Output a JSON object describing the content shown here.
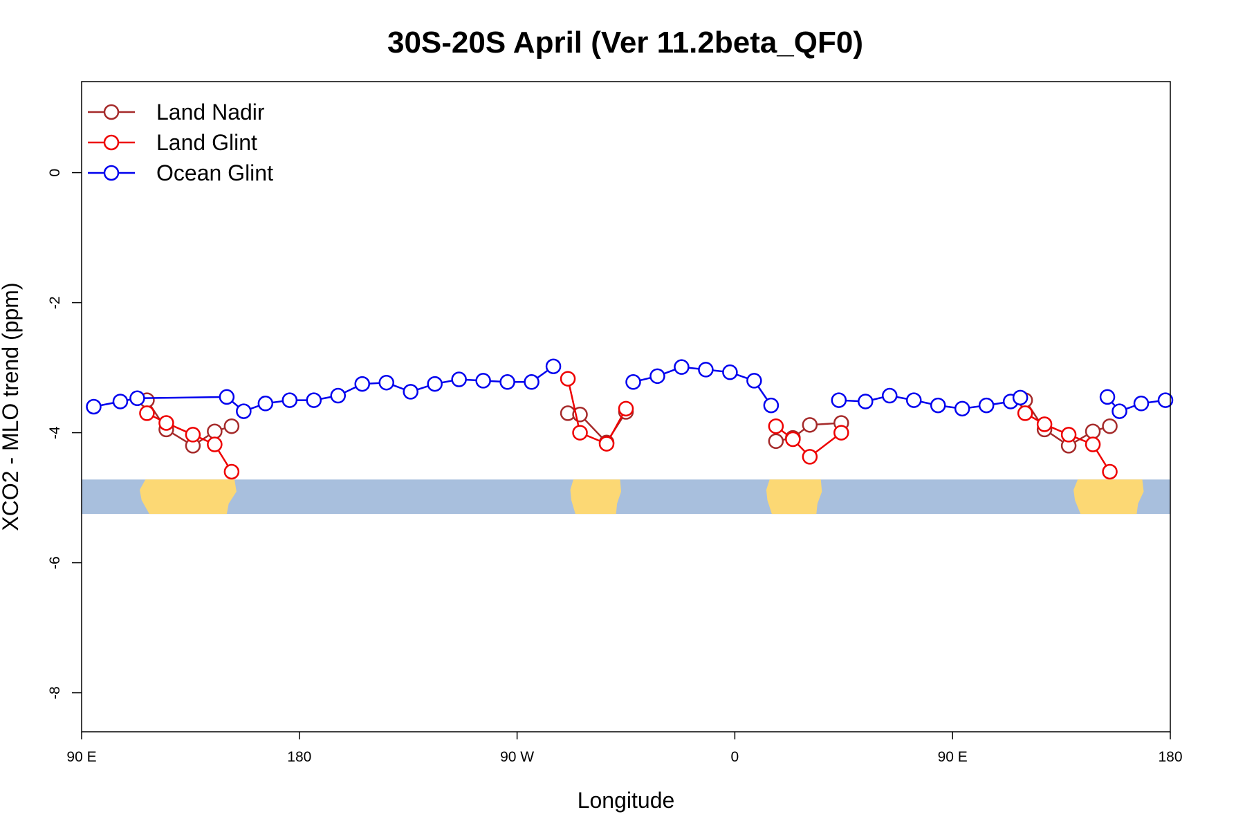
{
  "chart_data": {
    "type": "line",
    "title": "30S-20S April (Ver 11.2beta_QF0)",
    "xlabel": "Longitude",
    "ylabel": "XCO2 - MLO trend (ppm)",
    "xlim": [
      90,
      540
    ],
    "ylim": [
      -8.6,
      1.4
    ],
    "x_ticks": [
      {
        "value": 90,
        "label": "90 E"
      },
      {
        "value": 180,
        "label": "180"
      },
      {
        "value": 270,
        "label": "90 W"
      },
      {
        "value": 360,
        "label": "0"
      },
      {
        "value": 450,
        "label": "90 E"
      },
      {
        "value": 540,
        "label": "180"
      }
    ],
    "y_ticks": [
      {
        "value": 0,
        "label": "0"
      },
      {
        "value": -2,
        "label": "-2"
      },
      {
        "value": -4,
        "label": "-4"
      },
      {
        "value": -6,
        "label": "-6"
      },
      {
        "value": -8,
        "label": "-8"
      }
    ],
    "legend": {
      "position": "top-left"
    },
    "map_strip": {
      "y_range": [
        -5.25,
        -4.72
      ],
      "ocean_color": "#a8bfdd",
      "land_color": "#fcd874",
      "land_spans": [
        [
          114,
          154
        ],
        [
          292,
          313
        ],
        [
          373,
          396
        ],
        [
          500,
          529
        ]
      ]
    },
    "series": [
      {
        "name": "Land Nadir",
        "color": "#a52a2a",
        "segments": [
          [
            [
              117,
              -3.5
            ],
            [
              125,
              -3.95
            ],
            [
              136,
              -4.2
            ],
            [
              145,
              -3.98
            ],
            [
              152,
              -3.9
            ]
          ],
          [
            [
              291,
              -3.7
            ],
            [
              296,
              -3.72
            ],
            [
              307,
              -4.15
            ],
            [
              315,
              -3.68
            ]
          ],
          [
            [
              377,
              -4.13
            ],
            [
              384,
              -4.08
            ],
            [
              391,
              -3.88
            ],
            [
              404,
              -3.85
            ]
          ],
          [
            [
              480,
              -3.5
            ],
            [
              488,
              -3.95
            ],
            [
              498,
              -4.2
            ],
            [
              508,
              -3.98
            ],
            [
              515,
              -3.9
            ]
          ]
        ]
      },
      {
        "name": "Land Glint",
        "color": "#ee0000",
        "segments": [
          [
            [
              117,
              -3.7
            ],
            [
              125,
              -3.85
            ],
            [
              136,
              -4.03
            ],
            [
              145,
              -4.18
            ],
            [
              152,
              -4.6
            ]
          ],
          [
            [
              291,
              -3.17
            ],
            [
              296,
              -4.0
            ],
            [
              307,
              -4.17
            ],
            [
              315,
              -3.63
            ]
          ],
          [
            [
              377,
              -3.9
            ],
            [
              384,
              -4.1
            ],
            [
              391,
              -4.37
            ],
            [
              404,
              -4.0
            ]
          ],
          [
            [
              480,
              -3.7
            ],
            [
              488,
              -3.87
            ],
            [
              498,
              -4.03
            ],
            [
              508,
              -4.18
            ],
            [
              515,
              -4.6
            ]
          ]
        ]
      },
      {
        "name": "Ocean Glint",
        "color": "#0000ee",
        "segments": [
          [
            [
              95,
              -3.6
            ],
            [
              106,
              -3.52
            ],
            [
              113,
              -3.47
            ],
            [
              150,
              -3.45
            ],
            [
              157,
              -3.67
            ],
            [
              166,
              -3.55
            ],
            [
              176,
              -3.5
            ],
            [
              186,
              -3.5
            ],
            [
              196,
              -3.43
            ],
            [
              206,
              -3.25
            ],
            [
              216,
              -3.23
            ],
            [
              226,
              -3.37
            ],
            [
              236,
              -3.25
            ],
            [
              246,
              -3.18
            ],
            [
              256,
              -3.2
            ],
            [
              266,
              -3.22
            ],
            [
              276,
              -3.22
            ],
            [
              285,
              -2.98
            ]
          ],
          [
            [
              318,
              -3.22
            ],
            [
              328,
              -3.13
            ],
            [
              338,
              -2.99
            ],
            [
              348,
              -3.03
            ],
            [
              358,
              -3.07
            ],
            [
              368,
              -3.2
            ],
            [
              375,
              -3.58
            ]
          ],
          [
            [
              403,
              -3.5
            ],
            [
              414,
              -3.52
            ],
            [
              424,
              -3.43
            ],
            [
              434,
              -3.5
            ],
            [
              444,
              -3.58
            ],
            [
              454,
              -3.63
            ],
            [
              464,
              -3.58
            ],
            [
              474,
              -3.52
            ],
            [
              478,
              -3.46
            ]
          ],
          [
            [
              514,
              -3.45
            ],
            [
              519,
              -3.67
            ],
            [
              528,
              -3.55
            ],
            [
              538,
              -3.5
            ]
          ]
        ]
      }
    ]
  }
}
